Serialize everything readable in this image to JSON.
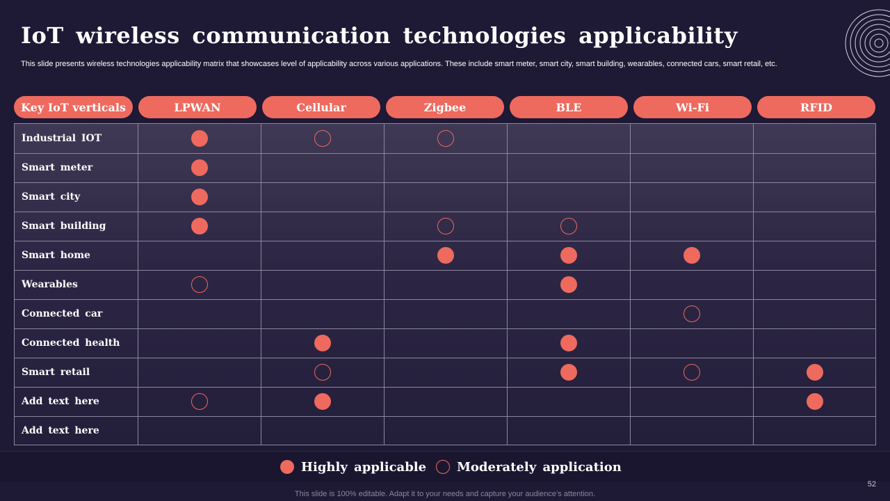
{
  "slide": {
    "title": "IoT wireless communication technologies applicability",
    "subtitle": "This slide presents wireless technologies applicability matrix that showcases level of applicability across various applications. These include smart meter, smart city, smart building, wearables, connected cars, smart retail, etc.",
    "page_number": "52",
    "footer_note": "This slide is 100% editable. Adapt it to your needs and capture your audience’s attention."
  },
  "colors": {
    "background": "#1e1934",
    "accent": "#ee6a5e",
    "grid": "#8c87a0"
  },
  "matrix": {
    "corner_label": "Key IoT verticals",
    "columns": [
      "LPWAN",
      "Cellular",
      "Zigbee",
      "BLE",
      "Wi-Fi",
      "RFID"
    ],
    "rows": [
      {
        "label": "Industrial  IOT",
        "cells": [
          "high",
          "moderate",
          "moderate",
          "",
          "",
          ""
        ]
      },
      {
        "label": "Smart  meter",
        "cells": [
          "high",
          "",
          "",
          "",
          "",
          ""
        ]
      },
      {
        "label": "Smart  city",
        "cells": [
          "high",
          "",
          "",
          "",
          "",
          ""
        ]
      },
      {
        "label": "Smart  building",
        "cells": [
          "high",
          "",
          "moderate",
          "moderate",
          "",
          ""
        ]
      },
      {
        "label": "Smart  home",
        "cells": [
          "",
          "",
          "high",
          "high",
          "high",
          ""
        ]
      },
      {
        "label": "Wearables",
        "cells": [
          "moderate",
          "",
          "",
          "high",
          "",
          ""
        ]
      },
      {
        "label": "Connected  car",
        "cells": [
          "",
          "",
          "",
          "",
          "moderate",
          ""
        ]
      },
      {
        "label": "Connected  health",
        "cells": [
          "",
          "high",
          "",
          "high",
          "",
          ""
        ]
      },
      {
        "label": "Smart  retail",
        "cells": [
          "",
          "moderate",
          "",
          "high",
          "moderate",
          "high"
        ]
      },
      {
        "label": "Add  text  here",
        "cells": [
          "moderate",
          "high",
          "",
          "",
          "",
          "high"
        ]
      },
      {
        "label": "Add  text  here",
        "cells": [
          "",
          "",
          "",
          "",
          "",
          ""
        ]
      }
    ]
  },
  "legend": {
    "high_label": "Highly  applicable",
    "moderate_label": "Moderately  application"
  },
  "icons": {
    "decoration": "concentric-circles-icon"
  }
}
